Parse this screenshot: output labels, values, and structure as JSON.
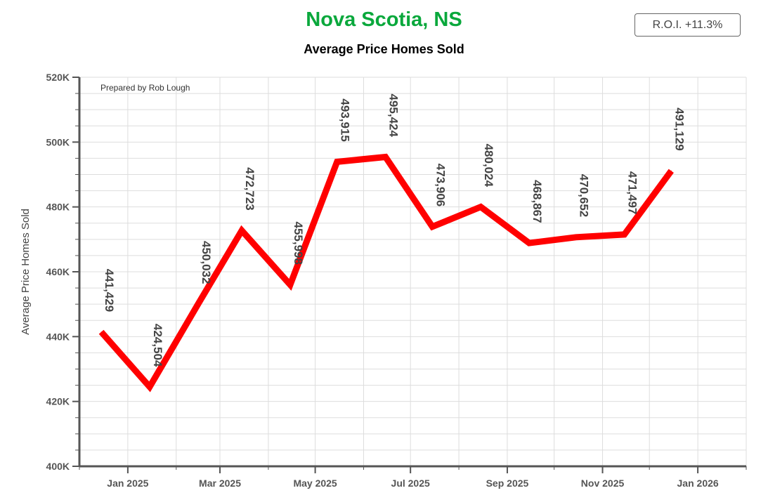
{
  "chart_data": {
    "type": "line",
    "title": "Nova Scotia, NS",
    "subtitle": "Average Price Homes Sold",
    "ylabel": "Average Price Homes Sold",
    "xlabel": "",
    "roi_badge": "R.O.I. +11.3%",
    "note": "Prepared by Rob Lough",
    "colors": {
      "title": "#0aa83c",
      "line": "#ff0000",
      "grid": "#dddddd",
      "axis": "#555555"
    },
    "ylim": [
      400000,
      520000
    ],
    "y_ticks": [
      {
        "value": 400000,
        "label": "400K"
      },
      {
        "value": 420000,
        "label": "420K"
      },
      {
        "value": 440000,
        "label": "440K"
      },
      {
        "value": 460000,
        "label": "460K"
      },
      {
        "value": 480000,
        "label": "480K"
      },
      {
        "value": 500000,
        "label": "500K"
      },
      {
        "value": 520000,
        "label": "520K"
      }
    ],
    "x_range": [
      "2024-12-01",
      "2026-02-01"
    ],
    "x_ticks": [
      {
        "date": "2025-01-01",
        "label": "Jan 2025"
      },
      {
        "date": "2025-03-01",
        "label": "Mar 2025"
      },
      {
        "date": "2025-05-01",
        "label": "May 2025"
      },
      {
        "date": "2025-07-01",
        "label": "Jul 2025"
      },
      {
        "date": "2025-09-01",
        "label": "Sep 2025"
      },
      {
        "date": "2025-11-01",
        "label": "Nov 2025"
      },
      {
        "date": "2026-01-01",
        "label": "Jan 2026"
      }
    ],
    "series": [
      {
        "points": [
          {
            "date": "2024-12-15",
            "value": 441429,
            "label": "441,429"
          },
          {
            "date": "2025-01-15",
            "value": 424504,
            "label": "424,504"
          },
          {
            "date": "2025-02-15",
            "value": 450032,
            "label": "450,032"
          },
          {
            "date": "2025-03-15",
            "value": 472723,
            "label": "472,723"
          },
          {
            "date": "2025-04-15",
            "value": 455998,
            "label": "455,998"
          },
          {
            "date": "2025-05-15",
            "value": 493915,
            "label": "493,915"
          },
          {
            "date": "2025-06-15",
            "value": 495424,
            "label": "495,424"
          },
          {
            "date": "2025-07-15",
            "value": 473906,
            "label": "473,906"
          },
          {
            "date": "2025-08-15",
            "value": 480024,
            "label": "480,024"
          },
          {
            "date": "2025-09-15",
            "value": 468867,
            "label": "468,867"
          },
          {
            "date": "2025-10-15",
            "value": 470652,
            "label": "470,652"
          },
          {
            "date": "2025-11-15",
            "value": 471497,
            "label": "471,497"
          },
          {
            "date": "2025-12-15",
            "value": 491129,
            "label": "491,129"
          }
        ]
      }
    ],
    "grid": true,
    "legend": "none"
  }
}
